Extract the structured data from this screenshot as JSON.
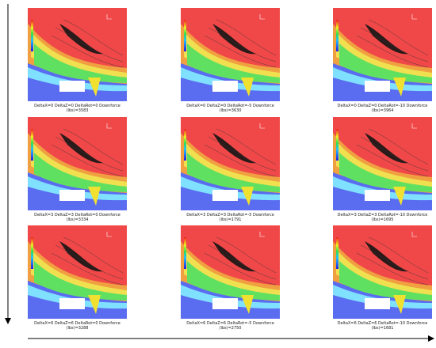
{
  "panels": [
    {
      "line1": "DeltaX=0  DeltaZ=0  DeltaRot=0  Downforce",
      "line2": "(lbs)=3583"
    },
    {
      "line1": "DeltaX=0  DeltaZ=0  DeltaRot=-5  Downforce",
      "line2": "(lbs)=3630"
    },
    {
      "line1": "DeltaX=0  DeltaZ=0  DeltaRot=-10  Downforce",
      "line2": "(lbs)=3964"
    },
    {
      "line1": "DeltaX=3  DeltaZ=3  DeltaRot=0  Downforce",
      "line2": "(lbs)=3334"
    },
    {
      "line1": "DeltaX=3  DeltaZ=3  DeltaRot=-5  Downforce",
      "line2": "(lbs)=1791"
    },
    {
      "line1": "DeltaX=3  DeltaZ=3  DeltaRot=-10  Downforce",
      "line2": "(lbs)=1695"
    },
    {
      "line1": "DeltaX=6  DeltaZ=6  DeltaRot=0  Downforce",
      "line2": "(lbs)=3288"
    },
    {
      "line1": "DeltaX=6  DeltaZ=6  DeltaRot=-5  Downforce",
      "line2": "(lbs)=2750"
    },
    {
      "line1": "DeltaX=6  DeltaZ=6  DeltaRot=-10  Downforce",
      "line2": "(lbs)=1681"
    }
  ]
}
